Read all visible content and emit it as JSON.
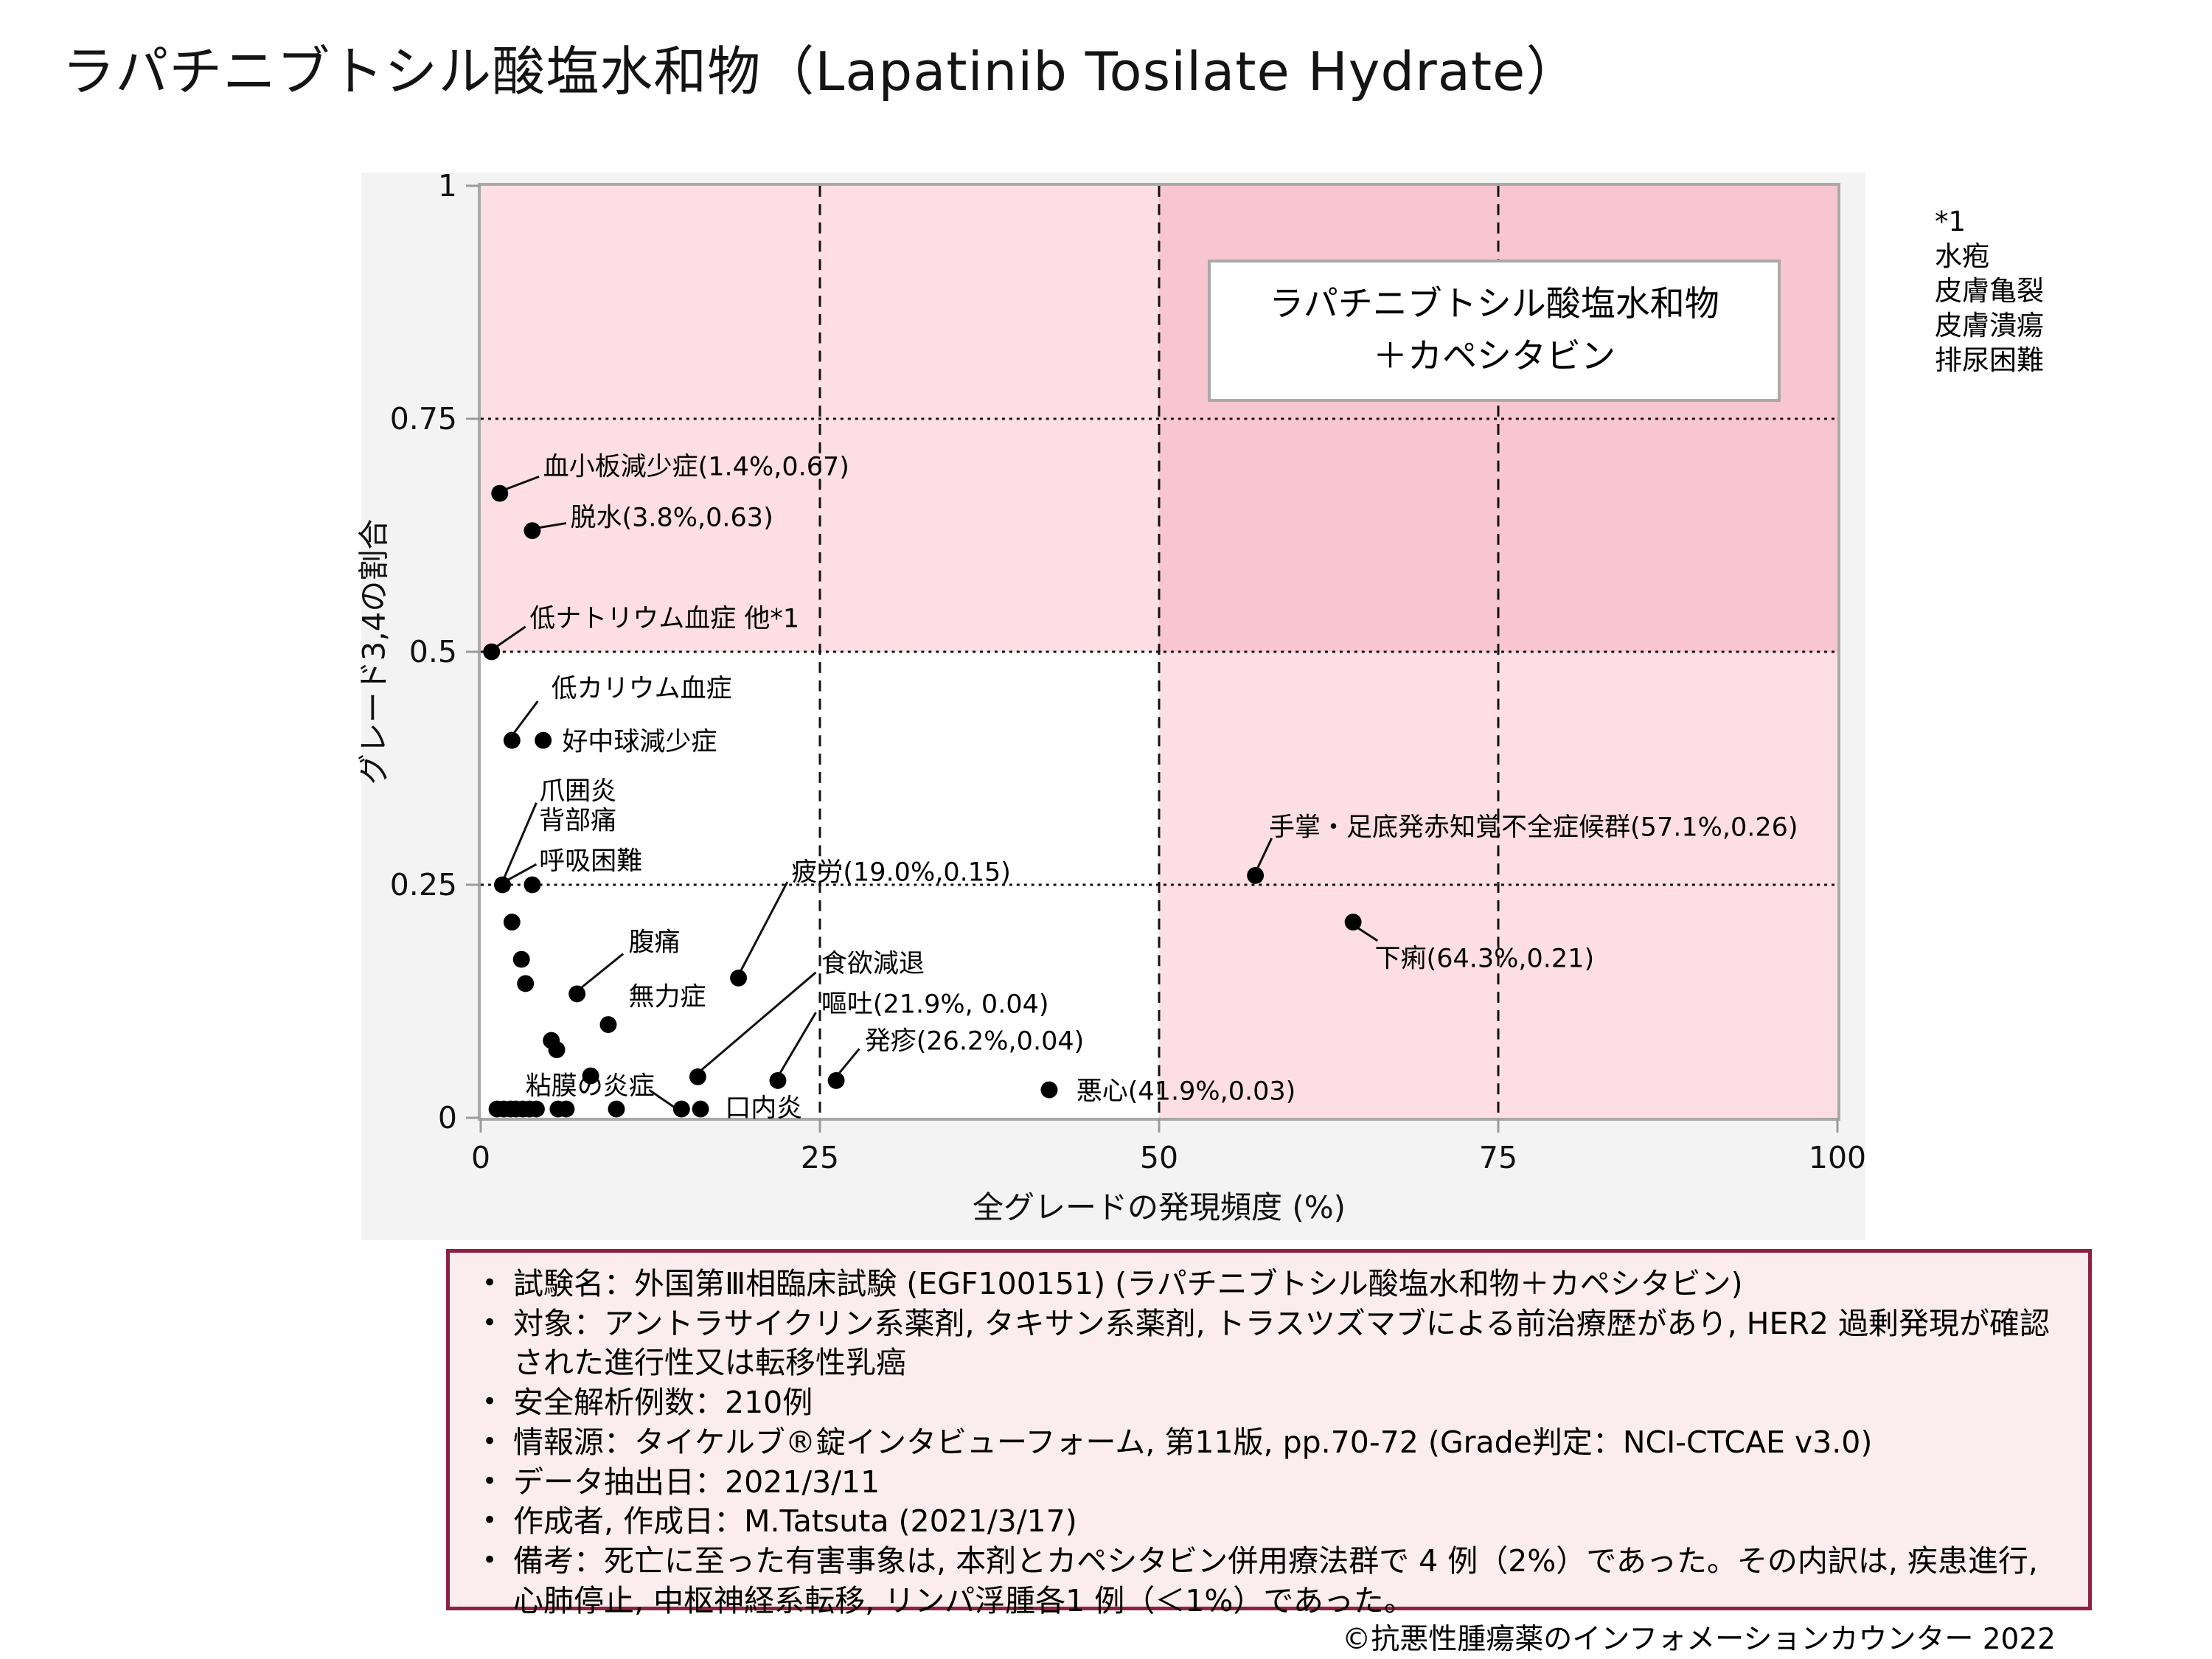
{
  "title": "ラパチニブトシル酸塩水和物（Lapatinib Tosilate Hydrate）",
  "legend_box": {
    "line1": "ラパチニブトシル酸塩水和物",
    "line2": "＋カペシタビン"
  },
  "footnote": {
    "lines": [
      "*1",
      "水疱",
      "皮膚亀裂",
      "皮膚潰瘍",
      "排尿困難"
    ]
  },
  "colors": {
    "light_pink": "#fcdee4",
    "dark_pink": "#f8c6ce",
    "frame_gray": "#a9a9a9",
    "figure_bg": "#f3f3f3",
    "info_bg": "#fbecef",
    "info_border": "#8e2040",
    "point_black": "#000000"
  },
  "chart_data": {
    "type": "scatter",
    "xlabel": "全グレードの発現頻度 (%)",
    "ylabel": "グレード3,4の割合",
    "xlim": [
      0,
      100
    ],
    "ylim": [
      0,
      1
    ],
    "xticks": [
      0,
      25,
      50,
      75,
      100
    ],
    "yticks": [
      0,
      0.25,
      0.5,
      0.75,
      1
    ],
    "ytick_labels": [
      "0",
      "0.25",
      "0.5",
      "0.75",
      "1"
    ],
    "grid_x": [
      25,
      50,
      75
    ],
    "grid_y": [
      0.25,
      0.5,
      0.75
    ],
    "legend_position": "top-right",
    "zones": [
      {
        "x0": 0,
        "x1": 50,
        "y0": 0.5,
        "y1": 1,
        "color": "#fcdee4"
      },
      {
        "x0": 50,
        "x1": 100,
        "y0": 0.5,
        "y1": 1,
        "color": "#f8c6ce"
      },
      {
        "x0": 50,
        "x1": 100,
        "y0": 0,
        "y1": 0.5,
        "color": "#fcdee4"
      }
    ],
    "points": [
      [
        1.4,
        0.67
      ],
      [
        3.8,
        0.63
      ],
      [
        0.8,
        0.5
      ],
      [
        2.3,
        0.405
      ],
      [
        4.6,
        0.405
      ],
      [
        1.6,
        0.25
      ],
      [
        3.8,
        0.25
      ],
      [
        2.3,
        0.21
      ],
      [
        3.0,
        0.17
      ],
      [
        3.3,
        0.144
      ],
      [
        7.1,
        0.133
      ],
      [
        9.4,
        0.1
      ],
      [
        5.2,
        0.083
      ],
      [
        5.6,
        0.073
      ],
      [
        8.1,
        0.045
      ],
      [
        19.0,
        0.15
      ],
      [
        16.0,
        0.044
      ],
      [
        21.9,
        0.04
      ],
      [
        26.2,
        0.04
      ],
      [
        41.9,
        0.03
      ],
      [
        57.1,
        0.26
      ],
      [
        64.3,
        0.21
      ],
      [
        1.2,
        0
      ],
      [
        1.7,
        0
      ],
      [
        2.2,
        0
      ],
      [
        2.6,
        0
      ],
      [
        3.1,
        0
      ],
      [
        3.6,
        0
      ],
      [
        4.1,
        0
      ],
      [
        5.7,
        0
      ],
      [
        6.3,
        0
      ],
      [
        10.0,
        0
      ],
      [
        14.8,
        0
      ],
      [
        16.2,
        0
      ]
    ],
    "annotations": [
      {
        "id": "thrombocytopenia",
        "text": "血小板減少症(1.4%,0.67)",
        "lx": 4.6,
        "ly": 0.701,
        "leader": [
          1.4,
          0.672,
          4.3,
          0.688
        ]
      },
      {
        "id": "dehydration",
        "text": "脱水(3.8%,0.63)",
        "lx": 6.6,
        "ly": 0.646,
        "leader": [
          3.8,
          0.632,
          6.3,
          0.638
        ]
      },
      {
        "id": "hyponatremia-other",
        "text": "低ナトリウム血症 他*1",
        "lx": 3.6,
        "ly": 0.538,
        "leader": [
          0.8,
          0.502,
          3.3,
          0.527
        ]
      },
      {
        "id": "hypokalemia",
        "text": "低カリウム血症",
        "lx": 5.2,
        "ly": 0.463,
        "leader": [
          2.3,
          0.41,
          4.2,
          0.447
        ]
      },
      {
        "id": "neutropenia",
        "text": "好中球減少症",
        "lx": 6.0,
        "ly": 0.406,
        "leader": null
      },
      {
        "id": "paronychia",
        "text": "爪囲炎",
        "lx": 4.3,
        "ly": 0.353,
        "leader": [
          1.6,
          0.253,
          4.1,
          0.338
        ]
      },
      {
        "id": "back-pain",
        "text": "背部痛",
        "lx": 4.3,
        "ly": 0.321,
        "leader": null
      },
      {
        "id": "dyspnoea",
        "text": "呼吸困難",
        "lx": 4.3,
        "ly": 0.278,
        "leader": [
          1.6,
          0.252,
          4.1,
          0.272
        ]
      },
      {
        "id": "fatigue",
        "text": "疲労(19.0%,0.15)",
        "lx": 22.9,
        "ly": 0.266,
        "leader": [
          19.0,
          0.153,
          22.6,
          0.253
        ]
      },
      {
        "id": "abdominal-pain",
        "text": "腹痛",
        "lx": 10.9,
        "ly": 0.191,
        "leader": [
          7.1,
          0.136,
          10.5,
          0.176
        ]
      },
      {
        "id": "asthenia",
        "text": "無力症",
        "lx": 10.9,
        "ly": 0.132,
        "leader": null
      },
      {
        "id": "decreased-appetite",
        "text": "食欲減退",
        "lx": 25.1,
        "ly": 0.168,
        "leader": [
          16.0,
          0.048,
          24.7,
          0.156
        ]
      },
      {
        "id": "vomiting",
        "text": "嘔吐(21.9%, 0.04)",
        "lx": 25.1,
        "ly": 0.124,
        "leader": [
          21.9,
          0.044,
          24.7,
          0.113
        ]
      },
      {
        "id": "rash",
        "text": "発疹(26.2%,0.04)",
        "lx": 28.3,
        "ly": 0.085,
        "leader": [
          26.2,
          0.044,
          27.9,
          0.074
        ]
      },
      {
        "id": "mucosal-inflammation",
        "text": "粘膜の炎症",
        "lx": 3.3,
        "ly": 0.036,
        "leader": [
          14.6,
          0.008,
          12.4,
          0.03
        ]
      },
      {
        "id": "stomatitis",
        "text": "口内炎",
        "lx": 18.0,
        "ly": 0.013,
        "leader": null
      },
      {
        "id": "nausea",
        "text": "悪心(41.9%,0.03)",
        "lx": 43.9,
        "ly": 0.031,
        "leader": null
      },
      {
        "id": "ppe-syndrome",
        "text": "手掌・足底発赤知覚不全症候群(57.1%,0.26)",
        "lx": 58.1,
        "ly": 0.314,
        "leader": [
          57.1,
          0.263,
          58.3,
          0.3
        ]
      },
      {
        "id": "diarrhoea",
        "text": "下痢(64.3%,0.21)",
        "lx": 65.9,
        "ly": 0.173,
        "leader": [
          64.3,
          0.207,
          66.1,
          0.19
        ]
      }
    ]
  },
  "info_box": {
    "bullets": [
      "試験名：外国第Ⅲ相臨床試験 (EGF100151) (ラパチニブトシル酸塩水和物＋カペシタビン)",
      "対象：アントラサイクリン系薬剤, タキサン系薬剤, トラスツズマブによる前治療歴があり, HER2 過剰発現が確認された進行性又は転移性乳癌",
      "安全解析例数：210例",
      "情報源：タイケルブ®錠インタビューフォーム, 第11版, pp.70-72 (Grade判定：NCI-CTCAE v3.0)",
      "データ抽出日：2021/3/11",
      "作成者, 作成日：M.Tatsuta (2021/3/17)",
      "備考：死亡に至った有害事象は, 本剤とカペシタビン併用療法群で 4 例（2%）であった。その内訳は, 疾患進行, 心肺停止, 中枢神経系転移, リンパ浮腫各1 例（＜1%）であった。"
    ]
  },
  "copyright": "©抗悪性腫瘍薬のインフォメーションカウンター 2022"
}
